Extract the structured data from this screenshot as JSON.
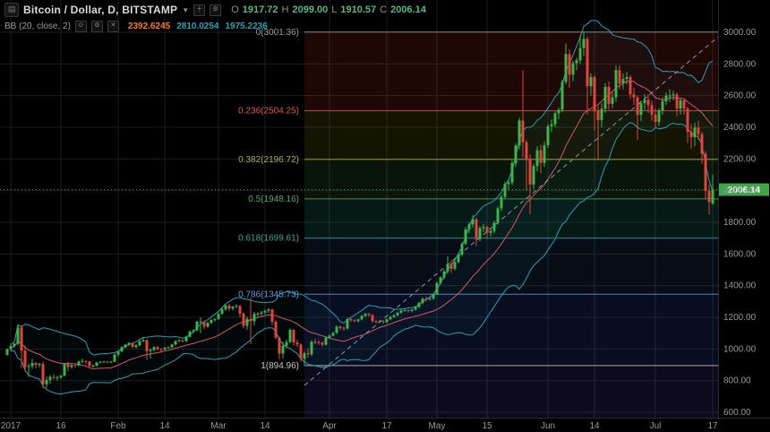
{
  "header": {
    "symbol_title": "Bitcoin / Dollar, D, BITSTAMP",
    "ohlc": {
      "o_label": "O",
      "o_value": "1917.72",
      "h_label": "H",
      "h_value": "2099.00",
      "l_label": "L",
      "l_value": "1910.57",
      "c_label": "C",
      "c_value": "2006.14"
    },
    "indicator": {
      "name": "BB (20, close, 2)",
      "values": [
        {
          "text": "2392.6245",
          "color": "#ff7a1a"
        },
        {
          "text": "2810.0254",
          "color": "#26a0b5"
        },
        {
          "text": "1975.2236",
          "color": "#26a0b5"
        }
      ]
    }
  },
  "colors": {
    "background": "#000000",
    "grid": "#1d1d1d",
    "axis_text": "#999999",
    "candle_up": "#3fb24a",
    "candle_down": "#e0443e",
    "ohlc_value": "#53b987",
    "bb_band": "#26a0b5",
    "bb_basis": "#d8556a",
    "bb_fill": "rgba(38,160,181,0.05)",
    "last_price_line": "#4caf50",
    "trend_line": "#b2b5be",
    "separator": "#2a2a2a"
  },
  "chart_data": {
    "type": "candlestick",
    "title": "Bitcoin / Dollar, D, BITSTAMP",
    "timeframe": "D",
    "x_axis": {
      "ticks": [
        {
          "d": 1,
          "label": "2017"
        },
        {
          "d": 15,
          "label": "16"
        },
        {
          "d": 31,
          "label": "Feb"
        },
        {
          "d": 44,
          "label": "14"
        },
        {
          "d": 59,
          "label": "Mar"
        },
        {
          "d": 72,
          "label": "14"
        },
        {
          "d": 90,
          "label": "Apr"
        },
        {
          "d": 106,
          "label": "17"
        },
        {
          "d": 120,
          "label": "May"
        },
        {
          "d": 134,
          "label": "15"
        },
        {
          "d": 151,
          "label": "Jun"
        },
        {
          "d": 164,
          "label": "14"
        },
        {
          "d": 181,
          "label": "Jul"
        },
        {
          "d": 197,
          "label": "17"
        }
      ]
    },
    "y_axis": {
      "min": 600,
      "max": 3000,
      "step": 200,
      "ticks": [
        {
          "v": 3000,
          "label": "3000.00"
        },
        {
          "v": 2800,
          "label": "2800.00"
        },
        {
          "v": 2600,
          "label": "2600.00"
        },
        {
          "v": 2400,
          "label": "2400.00"
        },
        {
          "v": 2200,
          "label": "2200.00"
        },
        {
          "v": 2000,
          "label": "2000.00"
        },
        {
          "v": 1800,
          "label": "1800.00"
        },
        {
          "v": 1600,
          "label": "1600.00"
        },
        {
          "v": 1400,
          "label": "1400.00"
        },
        {
          "v": 1200,
          "label": "1200.00"
        },
        {
          "v": 1000,
          "label": "1000.00"
        },
        {
          "v": 800,
          "label": "800.00"
        },
        {
          "v": 600,
          "label": "600.00"
        }
      ]
    },
    "last_price": {
      "value": 2006.14,
      "label": "2006.14",
      "bg": "#3fa548"
    },
    "bollinger": {
      "period": 20,
      "source": "close",
      "stdev": 2
    },
    "trend_line": {
      "from_day": 83,
      "from_price": 770,
      "to_day": 203,
      "to_price": 3056
    },
    "fibonacci": {
      "start_day_index": 83,
      "levels": [
        {
          "text": "0(3001.36)",
          "price": 3001.36,
          "color": "#9b9b9b"
        },
        {
          "text": "0.236(2504.25)",
          "price": 2504.25,
          "color": "#e2544e"
        },
        {
          "text": "0.382(2196.72)",
          "price": 2196.72,
          "color": "#b0b03a"
        },
        {
          "text": "0.5(1948.16)",
          "price": 1948.16,
          "color": "#4caf50"
        },
        {
          "text": "0.618(1699.61)",
          "price": 1699.61,
          "color": "#35a79c"
        },
        {
          "text": "0.786(1345.73)",
          "price": 1345.73,
          "color": "#5f9ae6"
        },
        {
          "text": "1(894.96)",
          "price": 894.96,
          "color": "#c8c8c8"
        }
      ],
      "zones": [
        {
          "from": 3001.36,
          "to": 2504.25,
          "fill": "rgba(230,60,50,0.13)"
        },
        {
          "from": 2504.25,
          "to": 2196.72,
          "fill": "rgba(180,180,40,0.11)"
        },
        {
          "from": 2196.72,
          "to": 1948.16,
          "fill": "rgba(70,170,80,0.12)"
        },
        {
          "from": 1948.16,
          "to": 1699.61,
          "fill": "rgba(40,165,150,0.15)"
        },
        {
          "from": 1699.61,
          "to": 1345.73,
          "fill": "rgba(60,130,220,0.10)"
        },
        {
          "from": 1345.73,
          "to": 894.96,
          "fill": "rgba(60,100,240,0.13)"
        },
        {
          "from": 894.96,
          "to": 560,
          "fill": "rgba(90,70,200,0.15)"
        }
      ]
    },
    "candles": [
      [
        963,
        1003,
        958,
        998
      ],
      [
        998,
        1032,
        990,
        1018
      ],
      [
        1018,
        1039,
        1009,
        1033
      ],
      [
        1033,
        1150,
        1022,
        1135
      ],
      [
        1135,
        1151,
        880,
        989
      ],
      [
        989,
        1021,
        857,
        886
      ],
      [
        886,
        908,
        823,
        892
      ],
      [
        892,
        937,
        874,
        911
      ],
      [
        911,
        916,
        880,
        900
      ],
      [
        900,
        912,
        883,
        905
      ],
      [
        905,
        919,
        750,
        777
      ],
      [
        777,
        826,
        755,
        804
      ],
      [
        804,
        835,
        780,
        823
      ],
      [
        823,
        841,
        810,
        818
      ],
      [
        818,
        831,
        800,
        821
      ],
      [
        821,
        836,
        810,
        831
      ],
      [
        831,
        910,
        828,
        907
      ],
      [
        907,
        919,
        859,
        886
      ],
      [
        886,
        904,
        875,
        898
      ],
      [
        898,
        900,
        884,
        895
      ],
      [
        895,
        926,
        890,
        921
      ],
      [
        921,
        938,
        910,
        924
      ],
      [
        924,
        927,
        905,
        921
      ],
      [
        921,
        924,
        886,
        892
      ],
      [
        892,
        902,
        884,
        894
      ],
      [
        894,
        918,
        888,
        915
      ],
      [
        915,
        922,
        910,
        919
      ],
      [
        919,
        924,
        913,
        920
      ],
      [
        920,
        923,
        909,
        915
      ],
      [
        915,
        923,
        911,
        920
      ],
      [
        920,
        970,
        916,
        965
      ],
      [
        965,
        990,
        950,
        985
      ],
      [
        985,
        1018,
        978,
        1011
      ],
      [
        1011,
        1031,
        1005,
        1027
      ],
      [
        1027,
        1044,
        1018,
        1038
      ],
      [
        1038,
        1042,
        1005,
        1013
      ],
      [
        1013,
        1029,
        1001,
        1024
      ],
      [
        1024,
        1055,
        1016,
        1048
      ],
      [
        1048,
        1072,
        1042,
        1055
      ],
      [
        1055,
        1063,
        930,
        986
      ],
      [
        986,
        1005,
        940,
        994
      ],
      [
        994,
        1019,
        985,
        1011
      ],
      [
        1011,
        1019,
        992,
        998
      ],
      [
        998,
        1007,
        975,
        997
      ],
      [
        997,
        1012,
        989,
        1008
      ],
      [
        1008,
        1016,
        1001,
        1010
      ],
      [
        1010,
        1032,
        1005,
        1028
      ],
      [
        1028,
        1055,
        1022,
        1049
      ],
      [
        1049,
        1063,
        1044,
        1054
      ],
      [
        1054,
        1060,
        1040,
        1048
      ],
      [
        1048,
        1083,
        1045,
        1077
      ],
      [
        1077,
        1117,
        1072,
        1110
      ],
      [
        1110,
        1125,
        1100,
        1118
      ],
      [
        1118,
        1180,
        1112,
        1172
      ],
      [
        1172,
        1200,
        1100,
        1173
      ],
      [
        1173,
        1180,
        1125,
        1141
      ],
      [
        1141,
        1170,
        1133,
        1165
      ],
      [
        1165,
        1190,
        1158,
        1183
      ],
      [
        1183,
        1195,
        1172,
        1189
      ],
      [
        1189,
        1230,
        1183,
        1222
      ],
      [
        1222,
        1260,
        1215,
        1251
      ],
      [
        1251,
        1280,
        1240,
        1274
      ],
      [
        1274,
        1285,
        1240,
        1255
      ],
      [
        1255,
        1272,
        1243,
        1267
      ],
      [
        1267,
        1282,
        1258,
        1272
      ],
      [
        1272,
        1278,
        1200,
        1223
      ],
      [
        1223,
        1232,
        1130,
        1146
      ],
      [
        1146,
        1205,
        1120,
        1190
      ],
      [
        1190,
        1325,
        1030,
        1175
      ],
      [
        1175,
        1235,
        1150,
        1221
      ],
      [
        1221,
        1232,
        1201,
        1222
      ],
      [
        1222,
        1240,
        1210,
        1230
      ],
      [
        1230,
        1251,
        1218,
        1240
      ],
      [
        1240,
        1258,
        1228,
        1249
      ],
      [
        1249,
        1255,
        1150,
        1172
      ],
      [
        1172,
        1181,
        1060,
        1071
      ],
      [
        1071,
        1078,
        935,
        971
      ],
      [
        971,
        1045,
        940,
        1020
      ],
      [
        1020,
        1060,
        1005,
        1044
      ],
      [
        1044,
        1130,
        1035,
        1120
      ],
      [
        1120,
        1125,
        1020,
        1041
      ],
      [
        1041,
        1060,
        1010,
        1028
      ],
      [
        1028,
        1035,
        920,
        937
      ],
      [
        937,
        985,
        895,
        973
      ],
      [
        973,
        1005,
        945,
        966
      ],
      [
        966,
        1055,
        955,
        1045
      ],
      [
        1045,
        1065,
        1030,
        1044
      ],
      [
        1044,
        1055,
        1025,
        1039
      ],
      [
        1039,
        1048,
        1015,
        1027
      ],
      [
        1027,
        1080,
        1020,
        1071
      ],
      [
        1071,
        1090,
        1062,
        1085
      ],
      [
        1085,
        1108,
        1078,
        1101
      ],
      [
        1101,
        1148,
        1095,
        1141
      ],
      [
        1141,
        1150,
        1120,
        1133
      ],
      [
        1133,
        1142,
        1115,
        1129
      ],
      [
        1129,
        1196,
        1122,
        1189
      ],
      [
        1189,
        1196,
        1170,
        1181
      ],
      [
        1181,
        1189,
        1168,
        1176
      ],
      [
        1176,
        1192,
        1168,
        1187
      ],
      [
        1187,
        1215,
        1180,
        1209
      ],
      [
        1209,
        1228,
        1200,
        1221
      ],
      [
        1221,
        1229,
        1205,
        1214
      ],
      [
        1214,
        1220,
        1165,
        1176
      ],
      [
        1176,
        1185,
        1162,
        1174
      ],
      [
        1174,
        1182,
        1165,
        1175
      ],
      [
        1175,
        1182,
        1160,
        1169
      ],
      [
        1169,
        1192,
        1163,
        1187
      ],
      [
        1187,
        1210,
        1181,
        1203
      ],
      [
        1203,
        1220,
        1195,
        1213
      ],
      [
        1213,
        1235,
        1206,
        1229
      ],
      [
        1229,
        1250,
        1220,
        1243
      ],
      [
        1243,
        1252,
        1234,
        1246
      ],
      [
        1246,
        1250,
        1228,
        1240
      ],
      [
        1240,
        1255,
        1232,
        1248
      ],
      [
        1248,
        1272,
        1241,
        1265
      ],
      [
        1265,
        1298,
        1258,
        1290
      ],
      [
        1290,
        1325,
        1282,
        1317
      ],
      [
        1317,
        1330,
        1300,
        1316
      ],
      [
        1316,
        1327,
        1305,
        1318
      ],
      [
        1318,
        1352,
        1310,
        1347
      ],
      [
        1347,
        1425,
        1340,
        1417
      ],
      [
        1417,
        1460,
        1405,
        1452
      ],
      [
        1452,
        1500,
        1440,
        1490
      ],
      [
        1490,
        1585,
        1475,
        1537
      ],
      [
        1537,
        1560,
        1480,
        1507
      ],
      [
        1507,
        1560,
        1495,
        1549
      ],
      [
        1549,
        1610,
        1540,
        1596
      ],
      [
        1596,
        1675,
        1585,
        1665
      ],
      [
        1665,
        1770,
        1655,
        1755
      ],
      [
        1755,
        1800,
        1730,
        1787
      ],
      [
        1787,
        1845,
        1765,
        1819
      ],
      [
        1819,
        1830,
        1650,
        1694
      ],
      [
        1694,
        1775,
        1680,
        1763
      ],
      [
        1763,
        1790,
        1740,
        1771
      ],
      [
        1771,
        1780,
        1700,
        1734
      ],
      [
        1734,
        1760,
        1710,
        1745
      ],
      [
        1745,
        1810,
        1730,
        1797
      ],
      [
        1797,
        1900,
        1785,
        1888
      ],
      [
        1888,
        1975,
        1870,
        1961
      ],
      [
        1961,
        2055,
        1945,
        2041
      ],
      [
        2041,
        2070,
        2005,
        2051
      ],
      [
        2051,
        2190,
        2035,
        2173
      ],
      [
        2173,
        2300,
        2150,
        2284
      ],
      [
        2284,
        2460,
        2260,
        2443
      ],
      [
        2443,
        2760,
        2210,
        2305
      ],
      [
        2305,
        2320,
        2000,
        2202
      ],
      [
        2202,
        2230,
        1850,
        2038
      ],
      [
        2038,
        2170,
        2010,
        2155
      ],
      [
        2155,
        2280,
        2120,
        2255
      ],
      [
        2255,
        2290,
        2110,
        2175
      ],
      [
        2175,
        2310,
        2150,
        2286
      ],
      [
        2286,
        2420,
        2270,
        2407
      ],
      [
        2407,
        2450,
        2370,
        2419
      ],
      [
        2419,
        2500,
        2400,
        2488
      ],
      [
        2488,
        2525,
        2450,
        2511
      ],
      [
        2511,
        2700,
        2495,
        2686
      ],
      [
        2686,
        2930,
        2670,
        2863
      ],
      [
        2863,
        2890,
        2650,
        2732
      ],
      [
        2732,
        2820,
        2690,
        2805
      ],
      [
        2805,
        2840,
        2760,
        2823
      ],
      [
        2823,
        2980,
        2800,
        2900
      ],
      [
        2900,
        3001,
        2850,
        2958
      ],
      [
        2958,
        2970,
        2480,
        2659
      ],
      [
        2659,
        2740,
        2600,
        2717
      ],
      [
        2717,
        2730,
        2380,
        2506
      ],
      [
        2506,
        2530,
        2190,
        2445
      ],
      [
        2445,
        2550,
        2400,
        2516
      ],
      [
        2516,
        2680,
        2490,
        2655
      ],
      [
        2655,
        2690,
        2510,
        2548
      ],
      [
        2548,
        2620,
        2520,
        2589
      ],
      [
        2589,
        2790,
        2560,
        2761
      ],
      [
        2761,
        2790,
        2640,
        2677
      ],
      [
        2677,
        2740,
        2640,
        2705
      ],
      [
        2705,
        2750,
        2670,
        2717
      ],
      [
        2717,
        2730,
        2580,
        2608
      ],
      [
        2608,
        2650,
        2540,
        2589
      ],
      [
        2589,
        2600,
        2320,
        2478
      ],
      [
        2478,
        2570,
        2440,
        2552
      ],
      [
        2552,
        2610,
        2510,
        2574
      ],
      [
        2574,
        2610,
        2490,
        2539
      ],
      [
        2539,
        2570,
        2440,
        2480
      ],
      [
        2480,
        2520,
        2400,
        2434
      ],
      [
        2434,
        2520,
        2410,
        2506
      ],
      [
        2506,
        2590,
        2480,
        2564
      ],
      [
        2564,
        2620,
        2540,
        2601
      ],
      [
        2601,
        2640,
        2560,
        2601
      ],
      [
        2601,
        2630,
        2570,
        2608
      ],
      [
        2608,
        2620,
        2470,
        2518
      ],
      [
        2518,
        2585,
        2480,
        2571
      ],
      [
        2571,
        2580,
        2480,
        2518
      ],
      [
        2518,
        2530,
        2300,
        2372
      ],
      [
        2372,
        2420,
        2265,
        2337
      ],
      [
        2337,
        2430,
        2280,
        2398
      ],
      [
        2398,
        2440,
        2320,
        2357
      ],
      [
        2357,
        2370,
        2170,
        2233
      ],
      [
        2233,
        2250,
        1950,
        1998
      ],
      [
        1998,
        2040,
        1850,
        1929
      ],
      [
        1917.72,
        2099,
        1910.57,
        2006.14
      ]
    ]
  }
}
